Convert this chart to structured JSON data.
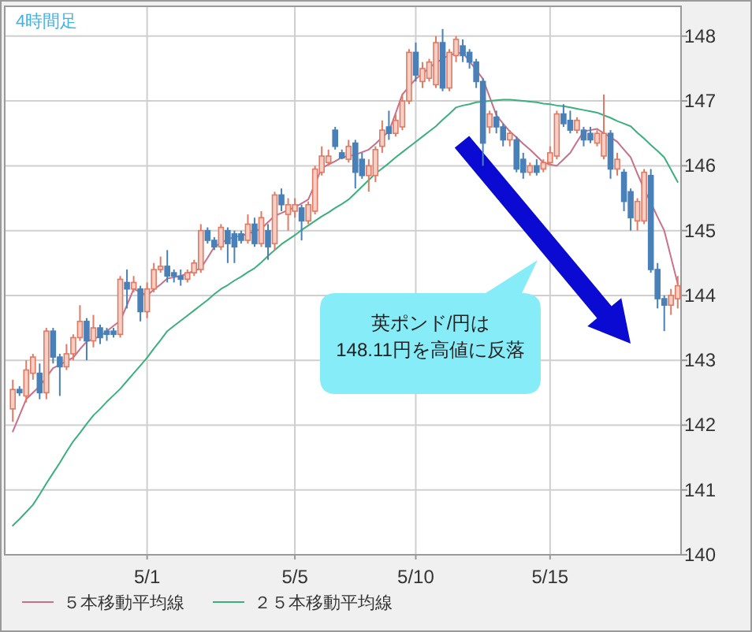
{
  "chart_data": {
    "type": "candlestick",
    "categories": [
      null,
      null,
      null,
      null,
      null,
      null,
      null,
      null,
      null,
      null,
      null,
      null,
      null,
      null,
      null,
      null,
      null,
      null,
      null,
      null,
      "5/1",
      null,
      null,
      null,
      null,
      null,
      null,
      null,
      null,
      null,
      null,
      null,
      null,
      null,
      null,
      null,
      null,
      null,
      null,
      null,
      null,
      null,
      "5/5",
      null,
      null,
      null,
      null,
      null,
      null,
      null,
      null,
      null,
      null,
      null,
      null,
      null,
      null,
      null,
      null,
      null,
      "5/10",
      null,
      null,
      null,
      null,
      null,
      null,
      null,
      null,
      null,
      null,
      null,
      null,
      null,
      null,
      null,
      null,
      null,
      null,
      null,
      "5/15",
      null,
      null,
      null,
      null,
      null,
      null,
      null,
      null,
      null,
      null,
      null,
      null,
      null,
      null,
      null,
      null,
      null,
      null,
      null
    ],
    "ohlc": [
      [
        142.25,
        142.7,
        142.05,
        142.55
      ],
      [
        142.55,
        142.6,
        142.45,
        142.5
      ],
      [
        142.45,
        143.0,
        142.35,
        142.85
      ],
      [
        142.8,
        143.1,
        142.7,
        143.05
      ],
      [
        142.8,
        142.95,
        142.4,
        142.5
      ],
      [
        142.5,
        143.5,
        142.4,
        143.45
      ],
      [
        143.45,
        143.5,
        142.95,
        143.05
      ],
      [
        143.05,
        143.1,
        142.45,
        142.9
      ],
      [
        142.9,
        143.25,
        142.85,
        143.1
      ],
      [
        143.1,
        143.4,
        143.0,
        143.35
      ],
      [
        143.35,
        143.85,
        143.3,
        143.6
      ],
      [
        143.6,
        143.65,
        143.0,
        143.3
      ],
      [
        143.3,
        143.7,
        143.2,
        143.5
      ],
      [
        143.5,
        143.55,
        143.25,
        143.35
      ],
      [
        143.45,
        143.5,
        143.3,
        143.4
      ],
      [
        143.45,
        143.5,
        143.35,
        143.4
      ],
      [
        143.4,
        144.3,
        143.35,
        144.25
      ],
      [
        144.2,
        144.4,
        143.8,
        144.1
      ],
      [
        144.1,
        144.3,
        144.05,
        144.2
      ],
      [
        144.1,
        144.15,
        143.6,
        143.75
      ],
      [
        143.75,
        144.2,
        143.65,
        144.1
      ],
      [
        144.1,
        144.5,
        144.05,
        144.4
      ],
      [
        144.4,
        144.6,
        144.35,
        144.45
      ],
      [
        144.45,
        144.7,
        144.2,
        144.3
      ],
      [
        144.35,
        144.4,
        144.2,
        144.3
      ],
      [
        144.3,
        144.4,
        144.15,
        144.25
      ],
      [
        144.25,
        144.4,
        144.2,
        144.35
      ],
      [
        144.35,
        144.55,
        144.3,
        144.5
      ],
      [
        144.4,
        145.1,
        144.35,
        145.0
      ],
      [
        145.0,
        145.05,
        144.8,
        144.85
      ],
      [
        144.85,
        144.9,
        144.7,
        144.75
      ],
      [
        144.75,
        145.1,
        144.7,
        145.05
      ],
      [
        145.0,
        145.05,
        144.5,
        144.8
      ],
      [
        144.95,
        145.0,
        144.5,
        144.75
      ],
      [
        144.95,
        145.0,
        144.8,
        144.85
      ],
      [
        144.85,
        145.25,
        144.8,
        145.1
      ],
      [
        145.1,
        145.2,
        144.75,
        144.8
      ],
      [
        144.8,
        145.3,
        144.75,
        145.2
      ],
      [
        145.0,
        145.1,
        144.55,
        144.75
      ],
      [
        144.8,
        145.6,
        144.7,
        145.55
      ],
      [
        145.55,
        145.65,
        145.3,
        145.4
      ],
      [
        145.25,
        145.5,
        145.0,
        145.4
      ],
      [
        145.3,
        145.5,
        145.2,
        145.4
      ],
      [
        145.35,
        145.4,
        144.85,
        145.15
      ],
      [
        145.15,
        145.45,
        145.1,
        145.4
      ],
      [
        145.3,
        146.0,
        145.25,
        145.95
      ],
      [
        145.9,
        146.3,
        145.85,
        146.15
      ],
      [
        146.05,
        146.25,
        146.0,
        146.15
      ],
      [
        146.55,
        146.6,
        146.25,
        146.3
      ],
      [
        146.2,
        146.25,
        146.1,
        146.12
      ],
      [
        146.1,
        146.4,
        146.05,
        146.3
      ],
      [
        146.35,
        146.4,
        145.65,
        145.9
      ],
      [
        146.1,
        146.2,
        145.8,
        145.85
      ],
      [
        145.85,
        146.1,
        145.6,
        146.0
      ],
      [
        145.85,
        146.3,
        145.75,
        146.25
      ],
      [
        146.3,
        146.7,
        146.2,
        146.55
      ],
      [
        146.6,
        146.85,
        146.4,
        146.5
      ],
      [
        146.5,
        146.8,
        146.45,
        146.7
      ],
      [
        146.6,
        147.1,
        146.55,
        147.0
      ],
      [
        147.0,
        147.8,
        146.95,
        147.75
      ],
      [
        147.75,
        147.9,
        147.3,
        147.4
      ],
      [
        147.3,
        147.6,
        147.2,
        147.5
      ],
      [
        147.35,
        147.65,
        147.3,
        147.6
      ],
      [
        147.25,
        148.0,
        147.2,
        147.9
      ],
      [
        147.9,
        148.11,
        147.15,
        147.2
      ],
      [
        147.2,
        147.8,
        147.15,
        147.75
      ],
      [
        147.7,
        148.0,
        147.6,
        147.95
      ],
      [
        147.85,
        147.95,
        147.6,
        147.7
      ],
      [
        147.75,
        147.8,
        147.5,
        147.6
      ],
      [
        147.6,
        147.65,
        147.2,
        147.3
      ],
      [
        147.3,
        147.35,
        146.0,
        146.35
      ],
      [
        146.6,
        146.85,
        146.5,
        146.8
      ],
      [
        146.75,
        146.85,
        146.5,
        146.6
      ],
      [
        146.6,
        146.65,
        146.3,
        146.4
      ],
      [
        146.4,
        146.55,
        146.3,
        146.5
      ],
      [
        146.4,
        146.45,
        145.9,
        145.95
      ],
      [
        146.1,
        146.2,
        145.8,
        145.9
      ],
      [
        145.9,
        146.05,
        145.85,
        146.0
      ],
      [
        146.0,
        146.1,
        145.85,
        145.9
      ],
      [
        145.95,
        146.1,
        145.9,
        146.05
      ],
      [
        146.05,
        146.3,
        146.0,
        146.2
      ],
      [
        146.15,
        146.85,
        146.1,
        146.8
      ],
      [
        146.8,
        146.95,
        146.6,
        146.65
      ],
      [
        146.7,
        146.85,
        146.5,
        146.55
      ],
      [
        146.55,
        146.75,
        146.5,
        146.7
      ],
      [
        146.55,
        146.6,
        146.3,
        146.4
      ],
      [
        146.5,
        146.6,
        146.35,
        146.4
      ],
      [
        146.35,
        146.55,
        146.3,
        146.5
      ],
      [
        146.15,
        147.1,
        146.1,
        146.5
      ],
      [
        146.5,
        146.55,
        145.8,
        145.95
      ],
      [
        145.95,
        146.2,
        145.85,
        146.1
      ],
      [
        145.9,
        145.95,
        145.3,
        145.45
      ],
      [
        145.6,
        145.65,
        145.0,
        145.2
      ],
      [
        145.15,
        145.5,
        145.0,
        145.45
      ],
      [
        145.15,
        145.95,
        145.1,
        145.9
      ],
      [
        145.85,
        145.95,
        144.35,
        144.4
      ],
      [
        144.4,
        144.5,
        143.8,
        143.95
      ],
      [
        143.95,
        144.0,
        143.45,
        143.85
      ],
      [
        143.85,
        144.1,
        143.7,
        144.0
      ],
      [
        143.95,
        144.3,
        143.8,
        144.15
      ]
    ],
    "series": [
      {
        "name": "５本移動平均線",
        "type": "line",
        "color": "#c8708a",
        "values": [
          141.9,
          142.15,
          142.4,
          142.5,
          142.6,
          142.74,
          142.88,
          142.93,
          142.99,
          143.04,
          143.17,
          143.29,
          143.33,
          143.37,
          143.45,
          143.53,
          143.61,
          143.85,
          144.1,
          144.05,
          144.0,
          144.09,
          144.17,
          144.26,
          144.28,
          144.3,
          144.34,
          144.38,
          144.42,
          144.58,
          144.75,
          144.81,
          144.87,
          144.9,
          144.92,
          144.95,
          144.99,
          145.03,
          145.13,
          145.23,
          145.27,
          145.32,
          145.36,
          145.42,
          145.48,
          145.72,
          145.96,
          146.02,
          146.07,
          146.13,
          146.15,
          146.17,
          146.21,
          146.25,
          146.34,
          146.44,
          146.53,
          146.81,
          147.1,
          147.22,
          147.34,
          147.42,
          147.51,
          147.59,
          147.65,
          147.71,
          147.73,
          147.75,
          147.61,
          147.48,
          147.34,
          147.06,
          146.78,
          146.65,
          146.53,
          146.44,
          146.34,
          146.25,
          146.15,
          146.05,
          146.02,
          146.0,
          146.1,
          146.2,
          146.37,
          146.53,
          146.55,
          146.57,
          146.5,
          146.44,
          146.37,
          146.25,
          146.13,
          145.88,
          145.64,
          145.43,
          145.21,
          145.0,
          144.59,
          144.18
        ]
      },
      {
        "name": "２５本移動平均線",
        "type": "line",
        "color": "#3cb07c",
        "values": [
          140.45,
          140.55,
          140.66,
          140.77,
          140.93,
          141.1,
          141.26,
          141.42,
          141.59,
          141.75,
          141.88,
          142.02,
          142.15,
          142.25,
          142.36,
          142.46,
          142.56,
          142.68,
          142.8,
          142.92,
          143.04,
          143.18,
          143.31,
          143.45,
          143.53,
          143.61,
          143.69,
          143.77,
          143.85,
          143.93,
          144.02,
          144.1,
          144.16,
          144.23,
          144.29,
          144.36,
          144.42,
          144.51,
          144.61,
          144.7,
          144.79,
          144.86,
          144.93,
          145.01,
          145.08,
          145.15,
          145.22,
          145.28,
          145.35,
          145.41,
          145.48,
          145.58,
          145.68,
          145.78,
          145.88,
          145.96,
          146.04,
          146.13,
          146.21,
          146.29,
          146.37,
          146.45,
          146.53,
          146.61,
          146.71,
          146.8,
          146.9,
          146.93,
          146.95,
          146.98,
          146.99,
          147.0,
          147.01,
          147.02,
          147.02,
          147.01,
          147.0,
          146.99,
          146.98,
          146.96,
          146.95,
          146.93,
          146.92,
          146.9,
          146.88,
          146.86,
          146.84,
          146.82,
          146.78,
          146.74,
          146.69,
          146.65,
          146.61,
          146.51,
          146.42,
          146.32,
          146.23,
          146.13,
          145.94,
          145.75
        ]
      }
    ],
    "ylim": [
      140,
      148.46
    ],
    "yticks": [
      140,
      141,
      142,
      143,
      144,
      145,
      146,
      147,
      148
    ],
    "grid": true,
    "legend": "bottom",
    "annotations": [
      "4時間足",
      "英ポンド/円は\n148.11円を高値に反落"
    ]
  }
}
